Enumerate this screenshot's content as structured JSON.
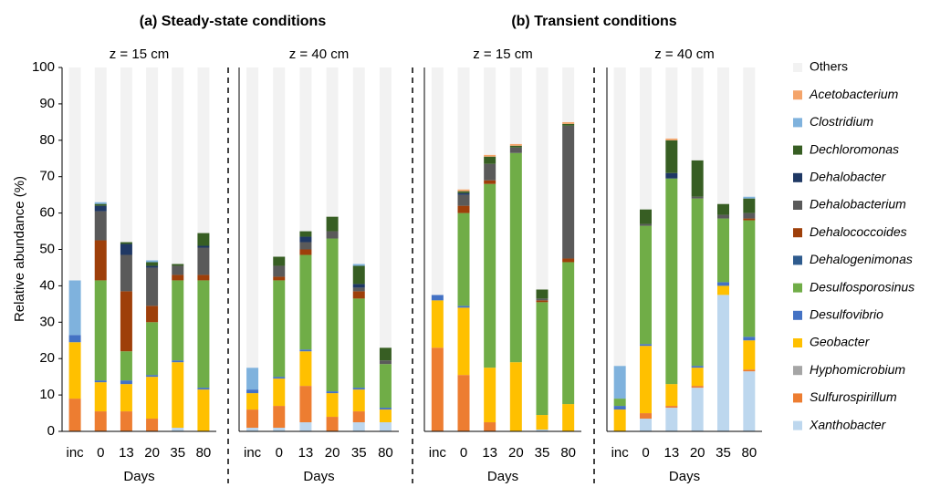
{
  "group_titles": [
    "(a) Steady-state conditions",
    "(b) Transient conditions"
  ],
  "chart_data": [
    {
      "type": "stacked_bar",
      "title": "z = 15 cm",
      "xlabel": "Days",
      "ylabel": "Relative abundance (%)",
      "categories": [
        "inc",
        "0",
        "13",
        "20",
        "35",
        "80"
      ],
      "ylim": [
        0,
        100
      ],
      "yticks": [
        0,
        10,
        20,
        30,
        40,
        50,
        60,
        70,
        80,
        90,
        100
      ],
      "series": [
        {
          "name": "Xanthobacter",
          "color": "#bdd7ee",
          "values": [
            0,
            0,
            0,
            0,
            1,
            0
          ]
        },
        {
          "name": "Sulfurospirillum",
          "color": "#ed7d31",
          "values": [
            9,
            5.5,
            5.5,
            3.5,
            0,
            0
          ]
        },
        {
          "name": "Hyphomicrobium",
          "color": "#a5a5a5",
          "values": [
            0,
            0,
            0,
            0,
            0,
            0
          ]
        },
        {
          "name": "Geobacter",
          "color": "#ffc000",
          "values": [
            15.5,
            8,
            7.5,
            11.5,
            18,
            11.5
          ]
        },
        {
          "name": "Desulfovibrio",
          "color": "#4472c4",
          "values": [
            2,
            0.5,
            1,
            0.5,
            0.5,
            0.5
          ]
        },
        {
          "name": "Desulfosporosinus",
          "color": "#70ad47",
          "values": [
            0,
            27.5,
            8,
            14.5,
            22,
            29.5
          ]
        },
        {
          "name": "Dehalogenimonas",
          "color": "#2e5b8e",
          "values": [
            0,
            0,
            0,
            0,
            0,
            0
          ]
        },
        {
          "name": "Dehalococcoides",
          "color": "#9e3f0a",
          "values": [
            0,
            11,
            16.5,
            4.5,
            1.5,
            1.5
          ]
        },
        {
          "name": "Dehalobacterium",
          "color": "#5a5a5a",
          "values": [
            0,
            8,
            10,
            10.5,
            2.5,
            7.5
          ]
        },
        {
          "name": "Dehalobacter",
          "color": "#1f3864",
          "values": [
            0,
            1.5,
            3,
            0.5,
            0,
            0.5
          ]
        },
        {
          "name": "Dechloromonas",
          "color": "#375e23",
          "values": [
            0,
            0.5,
            0.5,
            1,
            0.5,
            3.5
          ]
        },
        {
          "name": "Clostridium",
          "color": "#7fb2dd",
          "values": [
            15,
            0.5,
            0,
            0.5,
            0,
            0
          ]
        },
        {
          "name": "Acetobacterium",
          "color": "#f4a46a",
          "values": [
            0,
            0,
            0,
            0,
            0,
            0
          ]
        },
        {
          "name": "Others",
          "color": "#f2f2f2",
          "values": [
            58.5,
            37,
            48,
            53,
            54,
            45.5
          ]
        }
      ]
    },
    {
      "type": "stacked_bar",
      "title": "z = 40 cm",
      "xlabel": "Days",
      "categories": [
        "inc",
        "0",
        "13",
        "20",
        "35",
        "80"
      ],
      "ylim": [
        0,
        100
      ],
      "series": [
        {
          "name": "Xanthobacter",
          "color": "#bdd7ee",
          "values": [
            1,
            1,
            2.5,
            0,
            2.5,
            2.5
          ]
        },
        {
          "name": "Sulfurospirillum",
          "color": "#ed7d31",
          "values": [
            5,
            6,
            10,
            4,
            3,
            0
          ]
        },
        {
          "name": "Hyphomicrobium",
          "color": "#a5a5a5",
          "values": [
            0,
            0,
            0,
            0,
            0,
            0
          ]
        },
        {
          "name": "Geobacter",
          "color": "#ffc000",
          "values": [
            4.5,
            7.5,
            9.5,
            6.5,
            6,
            3.5
          ]
        },
        {
          "name": "Desulfovibrio",
          "color": "#4472c4",
          "values": [
            1,
            0.5,
            0.5,
            0.5,
            0.5,
            0.5
          ]
        },
        {
          "name": "Desulfosporosinus",
          "color": "#70ad47",
          "values": [
            0,
            26.5,
            26,
            42,
            24.5,
            12
          ]
        },
        {
          "name": "Dehalogenimonas",
          "color": "#2e5b8e",
          "values": [
            0,
            0,
            0,
            0,
            0,
            0
          ]
        },
        {
          "name": "Dehalococcoides",
          "color": "#9e3f0a",
          "values": [
            0,
            1,
            1.5,
            0,
            2,
            0
          ]
        },
        {
          "name": "Dehalobacterium",
          "color": "#5a5a5a",
          "values": [
            0,
            3,
            2,
            2,
            1,
            1
          ]
        },
        {
          "name": "Dehalobacter",
          "color": "#1f3864",
          "values": [
            0,
            0,
            1.5,
            0,
            1,
            0
          ]
        },
        {
          "name": "Dechloromonas",
          "color": "#375e23",
          "values": [
            0,
            2.5,
            1.5,
            4,
            5,
            3.5
          ]
        },
        {
          "name": "Clostridium",
          "color": "#7fb2dd",
          "values": [
            6,
            0,
            0,
            0,
            0.5,
            0
          ]
        },
        {
          "name": "Acetobacterium",
          "color": "#f4a46a",
          "values": [
            0,
            0,
            0,
            0,
            0,
            0
          ]
        },
        {
          "name": "Others",
          "color": "#f2f2f2",
          "values": [
            82.5,
            52,
            45,
            41,
            54,
            77
          ]
        }
      ]
    },
    {
      "type": "stacked_bar",
      "title": "z = 15 cm",
      "xlabel": "Days",
      "categories": [
        "inc",
        "0",
        "13",
        "20",
        "35",
        "80"
      ],
      "ylim": [
        0,
        100
      ],
      "series": [
        {
          "name": "Xanthobacter",
          "color": "#bdd7ee",
          "values": [
            0,
            0,
            0,
            0,
            0.5,
            0
          ]
        },
        {
          "name": "Sulfurospirillum",
          "color": "#ed7d31",
          "values": [
            23,
            15.5,
            2.5,
            0,
            0,
            0
          ]
        },
        {
          "name": "Hyphomicrobium",
          "color": "#a5a5a5",
          "values": [
            0,
            0,
            0,
            0,
            0,
            0
          ]
        },
        {
          "name": "Geobacter",
          "color": "#ffc000",
          "values": [
            13,
            18.5,
            15,
            19,
            4,
            7.5
          ]
        },
        {
          "name": "Desulfovibrio",
          "color": "#4472c4",
          "values": [
            1.5,
            0.5,
            0,
            0,
            0,
            0
          ]
        },
        {
          "name": "Desulfosporosinus",
          "color": "#70ad47",
          "values": [
            0,
            25.5,
            50.5,
            57.5,
            31,
            39
          ]
        },
        {
          "name": "Dehalogenimonas",
          "color": "#2e5b8e",
          "values": [
            0,
            0,
            0,
            0,
            0,
            0
          ]
        },
        {
          "name": "Dehalococcoides",
          "color": "#9e3f0a",
          "values": [
            0,
            2,
            1,
            0,
            0.5,
            1
          ]
        },
        {
          "name": "Dehalobacterium",
          "color": "#5a5a5a",
          "values": [
            0,
            3,
            4.5,
            1.5,
            0.5,
            36.5
          ]
        },
        {
          "name": "Dehalobacter",
          "color": "#1f3864",
          "values": [
            0,
            0.5,
            0,
            0,
            0,
            0
          ]
        },
        {
          "name": "Dechloromonas",
          "color": "#375e23",
          "values": [
            0,
            0.5,
            2,
            0.5,
            2.5,
            0.5
          ]
        },
        {
          "name": "Clostridium",
          "color": "#7fb2dd",
          "values": [
            0,
            0,
            0,
            0,
            0,
            0
          ]
        },
        {
          "name": "Acetobacterium",
          "color": "#f4a46a",
          "values": [
            0,
            0.5,
            0.5,
            0.5,
            0,
            0.5
          ]
        },
        {
          "name": "Others",
          "color": "#f2f2f2",
          "values": [
            62.5,
            33.5,
            24,
            21,
            61,
            15
          ]
        }
      ]
    },
    {
      "type": "stacked_bar",
      "title": "z = 40 cm",
      "xlabel": "Days",
      "categories": [
        "inc",
        "0",
        "13",
        "20",
        "35",
        "80"
      ],
      "ylim": [
        0,
        100
      ],
      "series": [
        {
          "name": "Xanthobacter",
          "color": "#bdd7ee",
          "values": [
            0,
            3.5,
            6.5,
            12,
            37.5,
            16.5
          ]
        },
        {
          "name": "Sulfurospirillum",
          "color": "#ed7d31",
          "values": [
            0,
            1.5,
            0.5,
            0.5,
            0,
            0.5
          ]
        },
        {
          "name": "Hyphomicrobium",
          "color": "#a5a5a5",
          "values": [
            0,
            0,
            0,
            0,
            0,
            0
          ]
        },
        {
          "name": "Geobacter",
          "color": "#ffc000",
          "values": [
            6,
            18.5,
            6,
            5,
            2.5,
            8
          ]
        },
        {
          "name": "Desulfovibrio",
          "color": "#4472c4",
          "values": [
            1,
            0.5,
            0,
            0.5,
            1,
            1
          ]
        },
        {
          "name": "Desulfosporosinus",
          "color": "#70ad47",
          "values": [
            2,
            32.5,
            56.5,
            46,
            17.5,
            32
          ]
        },
        {
          "name": "Dehalogenimonas",
          "color": "#2e5b8e",
          "values": [
            0,
            0,
            0,
            0,
            0,
            0
          ]
        },
        {
          "name": "Dehalococcoides",
          "color": "#9e3f0a",
          "values": [
            0,
            0,
            0,
            0,
            0,
            0.5
          ]
        },
        {
          "name": "Dehalobacterium",
          "color": "#5a5a5a",
          "values": [
            0,
            0.5,
            0,
            0.5,
            1,
            1.5
          ]
        },
        {
          "name": "Dehalobacter",
          "color": "#1f3864",
          "values": [
            0,
            0,
            1.5,
            0,
            0,
            0
          ]
        },
        {
          "name": "Dechloromonas",
          "color": "#375e23",
          "values": [
            0,
            4,
            9,
            10,
            3,
            4
          ]
        },
        {
          "name": "Clostridium",
          "color": "#7fb2dd",
          "values": [
            9,
            0,
            0,
            0,
            0,
            0.5
          ]
        },
        {
          "name": "Acetobacterium",
          "color": "#f4a46a",
          "values": [
            0,
            0,
            0.5,
            0,
            0,
            0
          ]
        },
        {
          "name": "Others",
          "color": "#f2f2f2",
          "values": [
            82,
            39,
            19.5,
            25.5,
            37.5,
            35.5
          ]
        }
      ]
    }
  ]
}
